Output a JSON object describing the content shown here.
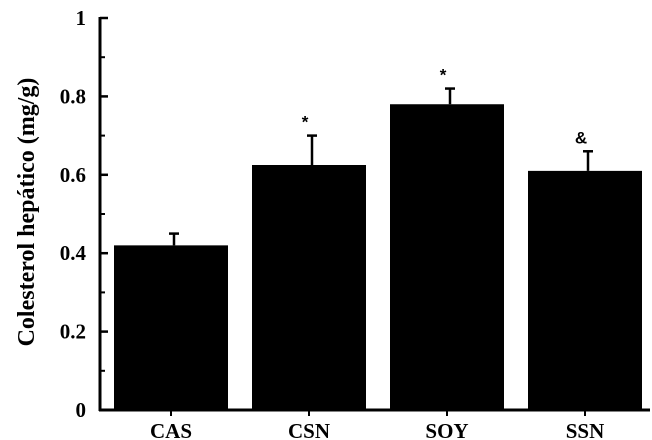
{
  "chart_data": {
    "type": "bar",
    "title": "",
    "xlabel": "",
    "ylabel": "Colesterol hepático (mg/g)",
    "categories": [
      "CAS",
      "CSN",
      "SOY",
      "SSN"
    ],
    "values": [
      0.42,
      0.625,
      0.78,
      0.61
    ],
    "errors": [
      0.03,
      0.075,
      0.04,
      0.05
    ],
    "annotations": [
      "",
      "*",
      "*",
      "&"
    ],
    "ylim": [
      0,
      1
    ],
    "yticks": [
      0,
      0.2,
      0.4,
      0.6,
      0.8,
      1
    ],
    "ytick_labels": [
      "0",
      "0.2",
      "0.4",
      "0.6",
      "0.8",
      "1"
    ],
    "bar_color": "#000000",
    "grid": false,
    "legend": "none"
  }
}
